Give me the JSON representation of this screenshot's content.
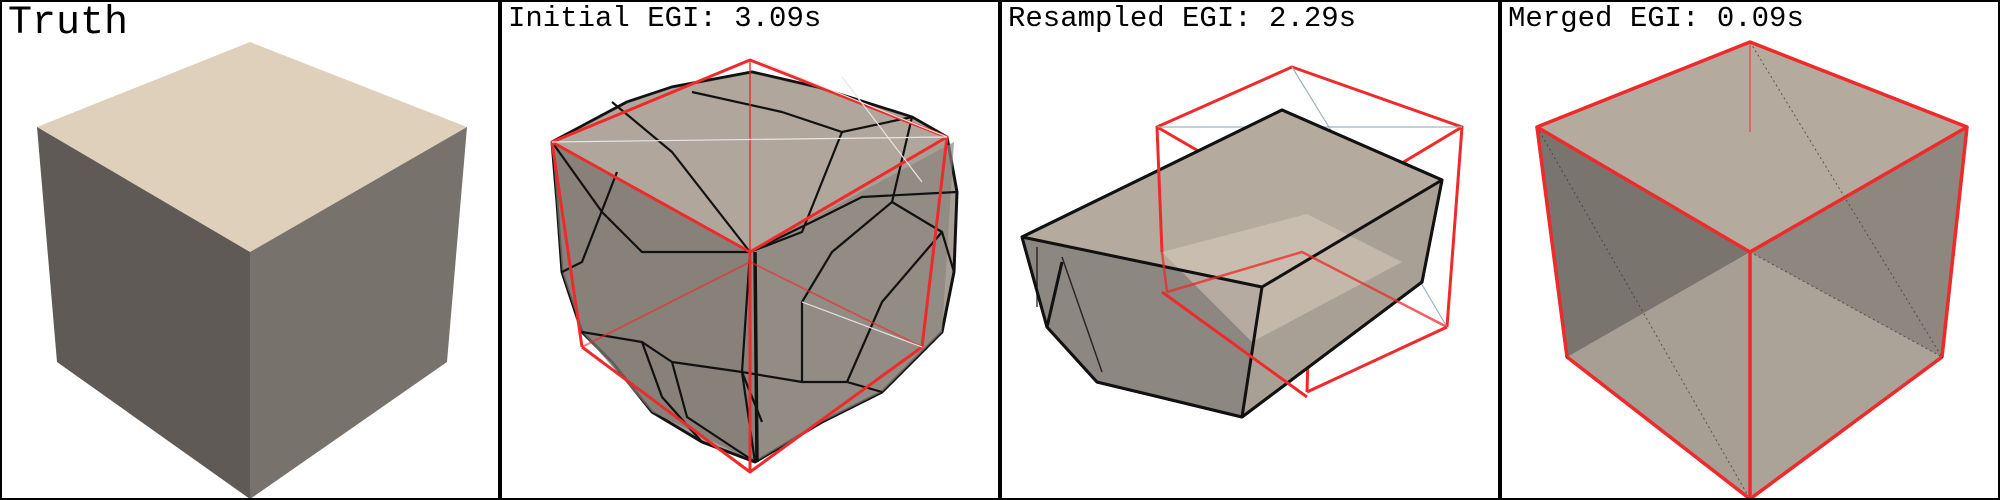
{
  "panels": [
    {
      "label": "Truth"
    },
    {
      "label": "Initial EGI: 3.09s"
    },
    {
      "label": "Resampled EGI: 2.29s"
    },
    {
      "label": "Merged EGI: 0.09s"
    }
  ],
  "colors": {
    "top_face": "#dfd0bc",
    "left_face": "#5f5a55",
    "right_face": "#78726c",
    "ground_truth_outline": "#ee2a2a",
    "estimate_edge": "#111111",
    "estimate_fill": "#a79e95"
  }
}
